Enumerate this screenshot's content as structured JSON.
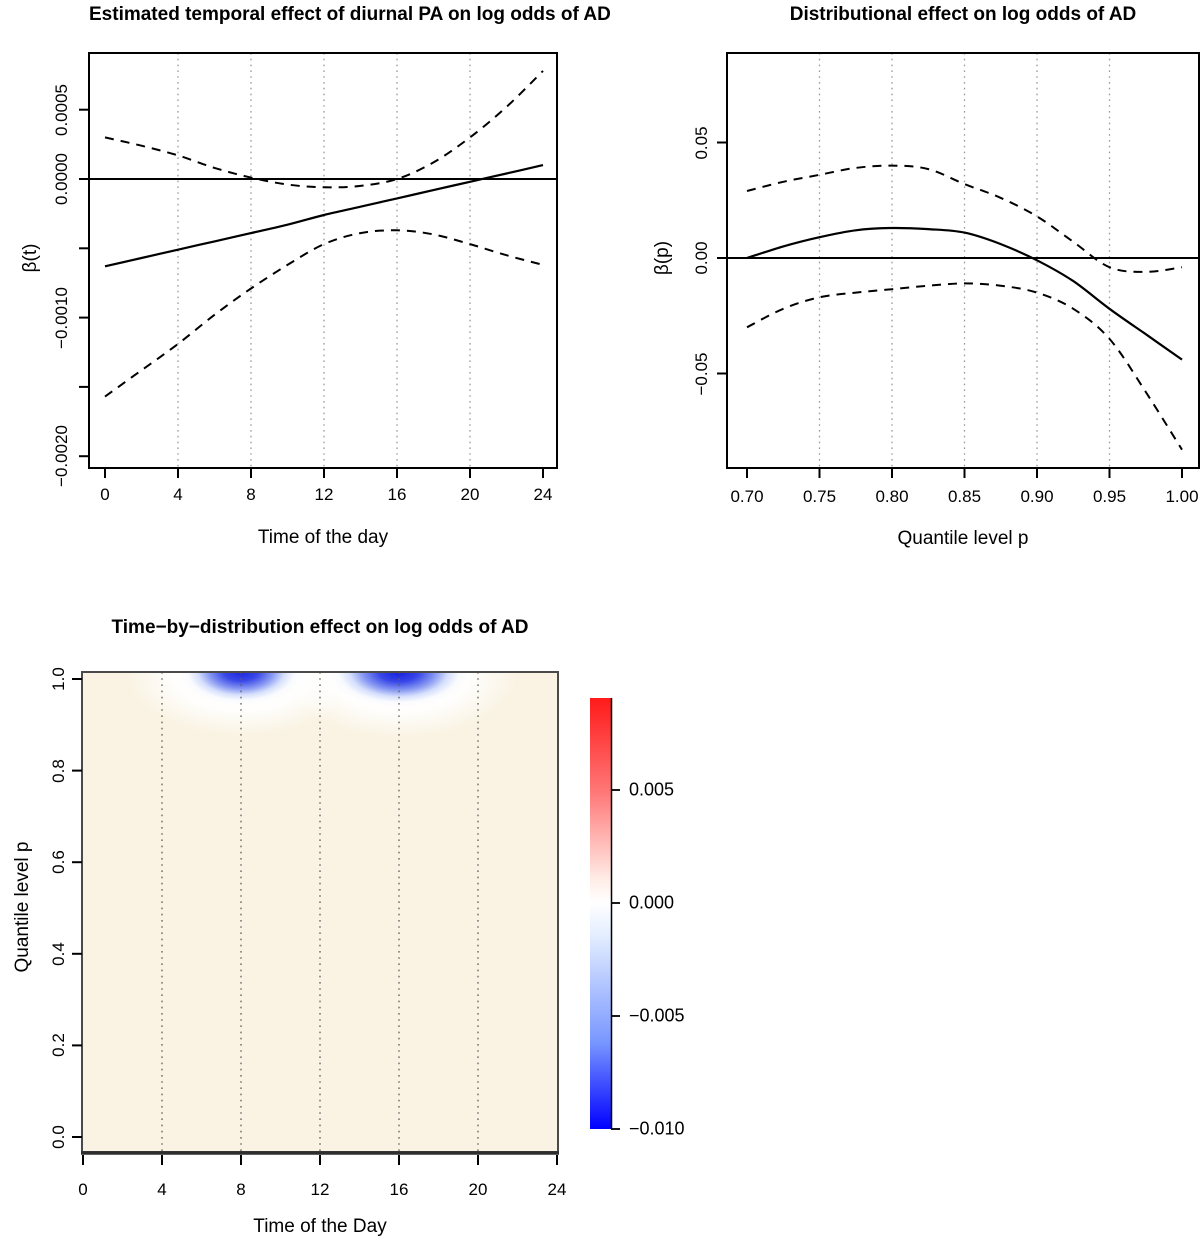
{
  "figure": {
    "background_color": "#ffffff",
    "text_color": "#000000",
    "accent_colors": {
      "heat_background": "#FAF3E3",
      "dip_blue": "#1B25DE",
      "colorbar_negative": "#0000FF",
      "colorbar_zero": "#FFFFFF",
      "colorbar_positive": "#FF0000",
      "gridline_gray": "#9A9A9A"
    }
  },
  "chart_data": [
    {
      "type": "line",
      "title": "Estimated temporal effect of diurnal PA on log odds of AD",
      "xlabel": "Time of the day",
      "ylabel": "β(t)",
      "xlim": [
        0,
        24
      ],
      "ylim": [
        -0.00209,
        0.00091
      ],
      "grid": "dotted-vertical",
      "legend": "none",
      "reference_line_y": 0,
      "x_ticks": [
        {
          "v": 0,
          "label": "0"
        },
        {
          "v": 4,
          "label": "4"
        },
        {
          "v": 8,
          "label": "8"
        },
        {
          "v": 12,
          "label": "12"
        },
        {
          "v": 16,
          "label": "16"
        },
        {
          "v": 20,
          "label": "20"
        },
        {
          "v": 24,
          "label": "24"
        }
      ],
      "x_gridlines": [
        4,
        8,
        12,
        16,
        20
      ],
      "y_ticks": [
        {
          "v": 0.0005,
          "label": "0.0005"
        },
        {
          "v": 0.0,
          "label": "0.0000"
        },
        {
          "v": -0.0005,
          "label": ""
        },
        {
          "v": -0.001,
          "label": "−0.0010"
        },
        {
          "v": -0.0015,
          "label": ""
        },
        {
          "v": -0.002,
          "label": "−0.0020"
        }
      ],
      "x": [
        0,
        2,
        4,
        6,
        8,
        10,
        12,
        14,
        16,
        18,
        20,
        22,
        24
      ],
      "series": [
        {
          "name": "estimate",
          "style": "solid",
          "values": [
            -0.00063,
            -0.00057,
            -0.00051,
            -0.00045,
            -0.00039,
            -0.00033,
            -0.00026,
            -0.0002,
            -0.00014,
            -8e-05,
            -2e-05,
            4e-05,
            0.0001
          ]
        },
        {
          "name": "upper-95-ci",
          "style": "dashed",
          "values": [
            0.0003,
            0.00024,
            0.00017,
            8e-05,
            1e-05,
            -4e-05,
            -6e-05,
            -5e-05,
            0.0,
            0.00012,
            0.0003,
            0.00052,
            0.00078
          ]
        },
        {
          "name": "lower-95-ci",
          "style": "dashed",
          "values": [
            -0.00157,
            -0.00138,
            -0.00119,
            -0.00098,
            -0.00079,
            -0.00062,
            -0.00047,
            -0.00039,
            -0.00037,
            -0.0004,
            -0.00047,
            -0.00055,
            -0.00062
          ]
        }
      ]
    },
    {
      "type": "line",
      "title": "Distributional effect on log odds of AD",
      "xlabel": "Quantile level p",
      "ylabel": "β(p)",
      "xlim": [
        0.7,
        1.0
      ],
      "ylim": [
        -0.091,
        0.089
      ],
      "grid": "dotted-vertical",
      "legend": "none",
      "reference_line_y": 0,
      "x_ticks": [
        {
          "v": 0.7,
          "label": "0.70"
        },
        {
          "v": 0.75,
          "label": "0.75"
        },
        {
          "v": 0.8,
          "label": "0.80"
        },
        {
          "v": 0.85,
          "label": "0.85"
        },
        {
          "v": 0.9,
          "label": "0.90"
        },
        {
          "v": 0.95,
          "label": "0.95"
        },
        {
          "v": 1.0,
          "label": "1.00"
        }
      ],
      "x_gridlines": [
        0.75,
        0.8,
        0.85,
        0.9,
        0.95
      ],
      "y_ticks": [
        {
          "v": 0.05,
          "label": "0.05"
        },
        {
          "v": 0.0,
          "label": "0.00"
        },
        {
          "v": -0.05,
          "label": "−0.05"
        }
      ],
      "x": [
        0.7,
        0.725,
        0.75,
        0.775,
        0.8,
        0.825,
        0.85,
        0.875,
        0.9,
        0.925,
        0.95,
        0.975,
        1.0
      ],
      "series": [
        {
          "name": "estimate",
          "style": "solid",
          "values": [
            0.0,
            0.005,
            0.009,
            0.012,
            0.013,
            0.0125,
            0.011,
            0.006,
            -0.001,
            -0.01,
            -0.022,
            -0.033,
            -0.044
          ]
        },
        {
          "name": "upper-95-ci",
          "style": "dashed",
          "values": [
            0.029,
            0.033,
            0.036,
            0.039,
            0.04,
            0.0385,
            0.032,
            0.026,
            0.018,
            0.007,
            -0.004,
            -0.006,
            -0.004
          ]
        },
        {
          "name": "lower-95-ci",
          "style": "dashed",
          "values": [
            -0.03,
            -0.022,
            -0.017,
            -0.015,
            -0.0135,
            -0.012,
            -0.011,
            -0.012,
            -0.015,
            -0.022,
            -0.035,
            -0.058,
            -0.083
          ]
        }
      ]
    },
    {
      "type": "heatmap",
      "title": "Time−by−distribution effect on log odds of AD",
      "xlabel": "Time of the Day",
      "ylabel": "Quantile level p",
      "xlim": [
        0,
        24
      ],
      "ylim": [
        0,
        1
      ],
      "grid": "dotted-vertical",
      "x_ticks": [
        {
          "v": 0,
          "label": "0"
        },
        {
          "v": 4,
          "label": "4"
        },
        {
          "v": 8,
          "label": "8"
        },
        {
          "v": 12,
          "label": "12"
        },
        {
          "v": 16,
          "label": "16"
        },
        {
          "v": 20,
          "label": "20"
        },
        {
          "v": 24,
          "label": "24"
        }
      ],
      "x_gridlines": [
        4,
        8,
        12,
        16,
        20
      ],
      "y_ticks": [
        {
          "v": 1.0,
          "label": "1.0"
        },
        {
          "v": 0.8,
          "label": "0.8"
        },
        {
          "v": 0.6,
          "label": "0.6"
        },
        {
          "v": 0.4,
          "label": "0.4"
        },
        {
          "v": 0.2,
          "label": "0.2"
        },
        {
          "v": 0.0,
          "label": "0.0"
        }
      ],
      "background_value": 0.0015,
      "features": [
        {
          "shape": "gaussian-dip",
          "center_time": 8,
          "center_p": 1.0,
          "min_value": -0.0075,
          "time_halfwidth_h": 2.5,
          "extends_down_to_p": 0.93,
          "white_halo_down_to_p": 0.89
        },
        {
          "shape": "gaussian-dip",
          "center_time": 16,
          "center_p": 1.0,
          "min_value": -0.008,
          "time_halfwidth_h": 2.7,
          "extends_down_to_p": 0.93,
          "white_halo_down_to_p": 0.89
        }
      ],
      "colorbar": {
        "min": -0.01,
        "max": 0.009,
        "orientation": "vertical",
        "ticks": [
          {
            "v": 0.005,
            "label": "0.005"
          },
          {
            "v": 0.0,
            "label": "0.000"
          },
          {
            "v": -0.005,
            "label": "−0.005"
          },
          {
            "v": -0.01,
            "label": "−0.010"
          }
        ]
      }
    }
  ]
}
